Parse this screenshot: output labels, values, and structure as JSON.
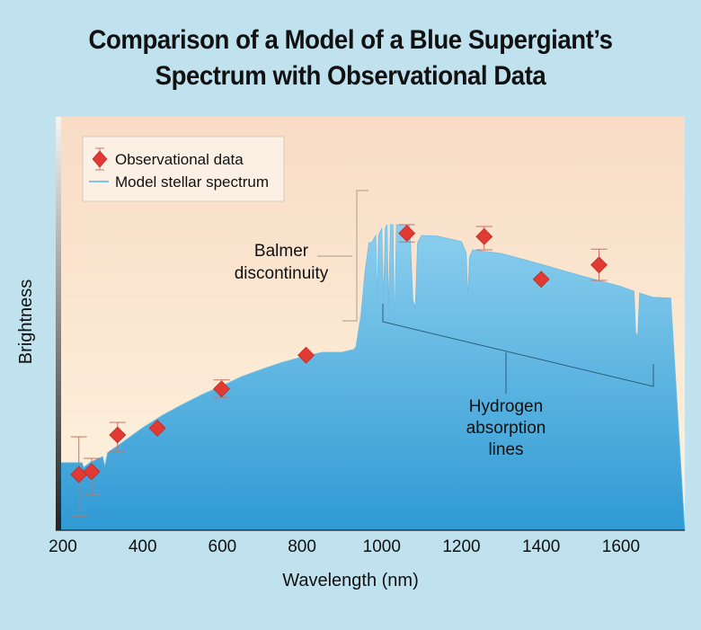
{
  "title_line1": "Comparison of a Model of a Blue Supergiant’s",
  "title_line2": "Spectrum with Observational Data",
  "chart_data": {
    "type": "line",
    "xlabel": "Wavelength (nm)",
    "ylabel": "Brightness",
    "xlim": [
      190,
      1725
    ],
    "ylim": [
      0,
      100
    ],
    "x_ticks": [
      200,
      400,
      600,
      800,
      1000,
      1200,
      1400,
      1600
    ],
    "legend": [
      "Observational data",
      "Model stellar spectrum"
    ],
    "legend_position": "top-left",
    "annotations": {
      "balmer": [
        "Balmer",
        "discontinuity"
      ],
      "hydrogen": [
        "Hydrogen",
        "absorption",
        "lines"
      ]
    },
    "series": [
      {
        "name": "Observational data",
        "points": [
          {
            "x": 240,
            "y": 15.5,
            "err": [
              26,
              4
            ]
          },
          {
            "x": 272,
            "y": 16.3,
            "err": [
              20,
              10
            ]
          },
          {
            "x": 337,
            "y": 26.5,
            "err": [
              30,
              22
            ]
          },
          {
            "x": 437,
            "y": 28.4
          },
          {
            "x": 598,
            "y": 39.3,
            "err": [
              41.8,
              37
            ]
          },
          {
            "x": 810,
            "y": 48.7
          },
          {
            "x": 1063,
            "y": 82.6,
            "err": [
              85,
              80.2
            ]
          },
          {
            "x": 1257,
            "y": 81.7,
            "err": [
              84.5,
              78
            ]
          },
          {
            "x": 1400,
            "y": 69.8
          },
          {
            "x": 1545,
            "y": 73.8,
            "err": [
              78.2,
              69.5
            ]
          }
        ]
      },
      {
        "name": "Model stellar spectrum",
        "points": [
          [
            190,
            18.8
          ],
          [
            248,
            18.8
          ],
          [
            252,
            17.5
          ],
          [
            270,
            19
          ],
          [
            300,
            20.5
          ],
          [
            305,
            17.8
          ],
          [
            312,
            21.6
          ],
          [
            350,
            24.5
          ],
          [
            400,
            28.5
          ],
          [
            450,
            32
          ],
          [
            500,
            35
          ],
          [
            550,
            37.8
          ],
          [
            600,
            40.2
          ],
          [
            650,
            42.8
          ],
          [
            700,
            44.8
          ],
          [
            750,
            46.7
          ],
          [
            800,
            48.2
          ],
          [
            850,
            49.5
          ],
          [
            900,
            49.5
          ],
          [
            930,
            50.3
          ],
          [
            935,
            51
          ],
          [
            948,
            60
          ],
          [
            958,
            72
          ],
          [
            968,
            80
          ],
          [
            975,
            80
          ],
          [
            985,
            82
          ],
          [
            988,
            64
          ],
          [
            992,
            82
          ],
          [
            1000,
            84
          ],
          [
            1004,
            64
          ],
          [
            1009,
            84
          ],
          [
            1013,
            85
          ],
          [
            1017,
            62
          ],
          [
            1022,
            85
          ],
          [
            1028,
            85
          ],
          [
            1032,
            57
          ],
          [
            1037,
            85
          ],
          [
            1060,
            85
          ],
          [
            1070,
            85
          ],
          [
            1078,
            64
          ],
          [
            1084,
            62
          ],
          [
            1090,
            80
          ],
          [
            1100,
            82
          ],
          [
            1140,
            81.8
          ],
          [
            1200,
            80.3
          ],
          [
            1212,
            77
          ],
          [
            1216,
            65
          ],
          [
            1220,
            76
          ],
          [
            1228,
            78
          ],
          [
            1300,
            77
          ],
          [
            1400,
            74
          ],
          [
            1500,
            70.8
          ],
          [
            1600,
            67.8
          ],
          [
            1633,
            66.5
          ],
          [
            1637,
            55
          ],
          [
            1642,
            54
          ],
          [
            1647,
            66
          ],
          [
            1680,
            64.8
          ],
          [
            1725,
            64.6
          ]
        ]
      }
    ]
  }
}
